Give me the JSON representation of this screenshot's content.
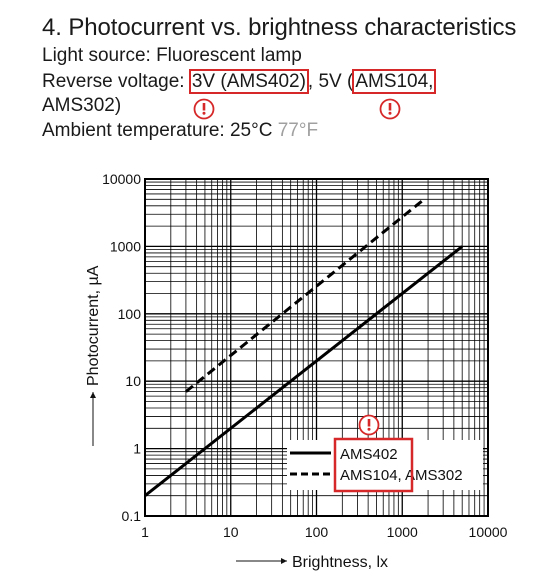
{
  "header": {
    "title": "4. Photocurrent vs. brightness characteristics",
    "light_source": "Light source: Fluorescent lamp",
    "rv_prefix": "Reverse voltage: ",
    "rv_val1": "3V (AMS402)",
    "rv_mid": ", 5V (",
    "rv_val2": "AMS104,",
    "rv_cont": "AMS302)",
    "ambient": "Ambient temperature: 25°C ",
    "ambient_f": "77°F"
  },
  "colors": {
    "highlight": "#d62828",
    "ink": "#111111",
    "muted": "#a0a0a0"
  },
  "chart_data": {
    "type": "line",
    "xlabel": "Brightness, lx",
    "ylabel": "Photocurrent, µA",
    "x_scale": "log",
    "y_scale": "log",
    "xlim": [
      1,
      10000
    ],
    "ylim": [
      0.1,
      10000
    ],
    "x_ticks": [
      "1",
      "10",
      "100",
      "1000",
      "10000"
    ],
    "y_ticks": [
      "0.1",
      "1",
      "10",
      "100",
      "1000",
      "10000"
    ],
    "grid": true,
    "legend_position": "lower-right",
    "series": [
      {
        "name": "AMS402",
        "style": "solid",
        "x": [
          1,
          5000
        ],
        "y": [
          0.2,
          1000
        ]
      },
      {
        "name": "AMS104, AMS302",
        "style": "dashed",
        "x": [
          3,
          1800
        ],
        "y": [
          7,
          5000
        ]
      }
    ],
    "legend": [
      {
        "label": "AMS402",
        "style": "solid"
      },
      {
        "label": "AMS104, AMS302",
        "style": "dashed"
      }
    ],
    "warning_icons": 3
  }
}
